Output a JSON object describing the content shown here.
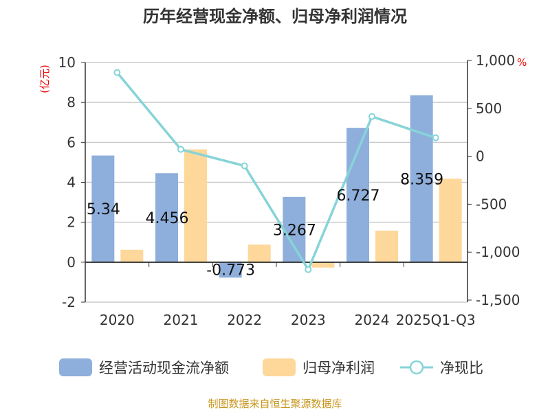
{
  "chart_data": {
    "type": "bar+line",
    "title": "历年经营现金净额、归母净利润情况",
    "categories": [
      "2020",
      "2021",
      "2022",
      "2023",
      "2024",
      "2025Q1-Q3"
    ],
    "ylabel_left": "(亿元)",
    "ylabel_right": "%",
    "ylim_left": [
      -2,
      10
    ],
    "yticks_left": [
      "-2",
      "0",
      "2",
      "4",
      "6",
      "8",
      "10"
    ],
    "ylim_right": [
      -1500,
      1000
    ],
    "yticks_right": [
      "-1,500",
      "-1,000",
      "-500",
      "0",
      "500",
      "1,000"
    ],
    "grid": true,
    "legend_placement": "bottom",
    "series": [
      {
        "name": "经营活动现金流净额",
        "type": "bar",
        "color": "#8eaedb",
        "values": [
          5.34,
          4.456,
          -0.773,
          3.267,
          6.727,
          8.359
        ],
        "labels": [
          "5.34",
          "4.456",
          "-0.773",
          "3.267",
          "6.727",
          "8.359"
        ]
      },
      {
        "name": "归母净利润",
        "type": "bar",
        "color": "#fdd89a",
        "values": [
          0.62,
          5.65,
          0.88,
          -0.27,
          1.58,
          4.18
        ]
      },
      {
        "name": "净现比",
        "type": "line",
        "axis": "right",
        "color": "#86d4d8",
        "values": [
          874,
          72,
          -100,
          -1182,
          415,
          193
        ]
      }
    ]
  },
  "footer": "制图数据来自恒生聚源数据库"
}
